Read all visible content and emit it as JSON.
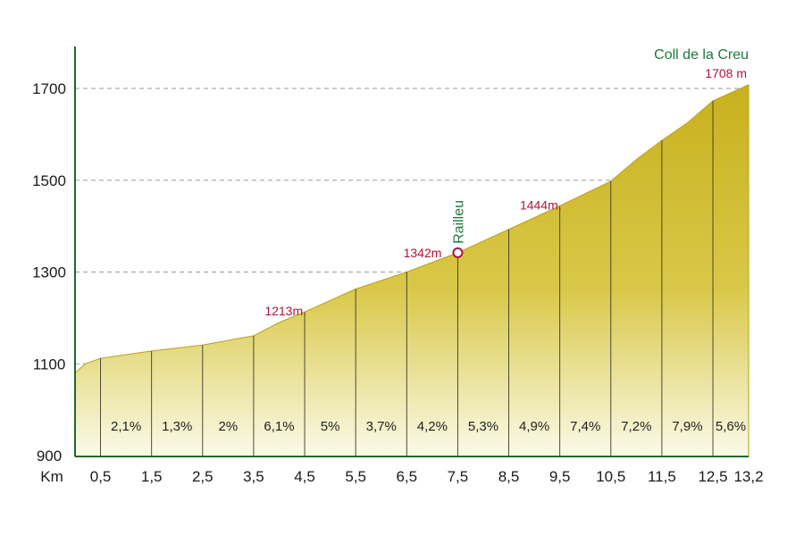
{
  "chart_data": {
    "type": "area",
    "title": "",
    "xlabel": "Km",
    "ylabel": "",
    "xlim": [
      0,
      13.2
    ],
    "ylim": [
      900,
      1800
    ],
    "y_ticks": [
      "900",
      "1100",
      "1300",
      "1500",
      "1700"
    ],
    "x_ticks": [
      {
        "value": 0.5,
        "label": "0,5"
      },
      {
        "value": 1.5,
        "label": "1,5"
      },
      {
        "value": 2.5,
        "label": "2,5"
      },
      {
        "value": 3.5,
        "label": "3,5"
      },
      {
        "value": 4.5,
        "label": "4,5"
      },
      {
        "value": 5.5,
        "label": "5,5"
      },
      {
        "value": 6.5,
        "label": "6,5"
      },
      {
        "value": 7.5,
        "label": "7,5"
      },
      {
        "value": 8.5,
        "label": "8,5"
      },
      {
        "value": 9.5,
        "label": "9,5"
      },
      {
        "value": 10.5,
        "label": "10,5"
      },
      {
        "value": 11.5,
        "label": "11,5"
      },
      {
        "value": 12.5,
        "label": "12,5"
      },
      {
        "value": 13.2,
        "label": "13,2"
      }
    ],
    "grid": "horizontal dashed",
    "profile": [
      {
        "km": 0.0,
        "alt": 1080
      },
      {
        "km": 0.2,
        "alt": 1100
      },
      {
        "km": 0.5,
        "alt": 1112
      },
      {
        "km": 1.5,
        "alt": 1128
      },
      {
        "km": 2.5,
        "alt": 1141
      },
      {
        "km": 3.5,
        "alt": 1161
      },
      {
        "km": 4.0,
        "alt": 1190
      },
      {
        "km": 4.5,
        "alt": 1213
      },
      {
        "km": 5.5,
        "alt": 1263
      },
      {
        "km": 6.5,
        "alt": 1300
      },
      {
        "km": 7.5,
        "alt": 1342
      },
      {
        "km": 8.5,
        "alt": 1393
      },
      {
        "km": 9.5,
        "alt": 1444
      },
      {
        "km": 10.5,
        "alt": 1498
      },
      {
        "km": 11.0,
        "alt": 1545
      },
      {
        "km": 11.5,
        "alt": 1587
      },
      {
        "km": 12.0,
        "alt": 1625
      },
      {
        "km": 12.5,
        "alt": 1673
      },
      {
        "km": 13.2,
        "alt": 1708
      }
    ],
    "grades": [
      {
        "km": 1.0,
        "label": "2,1%"
      },
      {
        "km": 2.0,
        "label": "1,3%"
      },
      {
        "km": 3.0,
        "label": "2%"
      },
      {
        "km": 4.0,
        "label": "6,1%"
      },
      {
        "km": 5.0,
        "label": "5%"
      },
      {
        "km": 6.0,
        "label": "3,7%"
      },
      {
        "km": 7.0,
        "label": "4,2%"
      },
      {
        "km": 8.0,
        "label": "5,3%"
      },
      {
        "km": 9.0,
        "label": "4,9%"
      },
      {
        "km": 10.0,
        "label": "7,4%"
      },
      {
        "km": 11.0,
        "label": "7,2%"
      },
      {
        "km": 12.0,
        "label": "7,9%"
      },
      {
        "km": 12.85,
        "label": "5,6%"
      }
    ],
    "annotations": [
      {
        "km": 4.5,
        "alt": 1213,
        "label": "1213m."
      },
      {
        "km": 7.5,
        "alt": 1342,
        "label": "1342m",
        "waypoint": "Railleu"
      },
      {
        "km": 9.5,
        "alt": 1444,
        "label": "1444m."
      },
      {
        "km": 13.2,
        "alt": 1708,
        "label": "1708 m",
        "summit": "Coll de la Creu"
      }
    ],
    "colors": {
      "fill_top": "#c8b11e",
      "fill_mid": "#d9c848",
      "fill_bottom": "#fbfae8",
      "axis": "#1d6b2c",
      "grid": "#9a9a9a",
      "red_label": "#b0123c",
      "green_label": "#1d7a3a"
    }
  }
}
